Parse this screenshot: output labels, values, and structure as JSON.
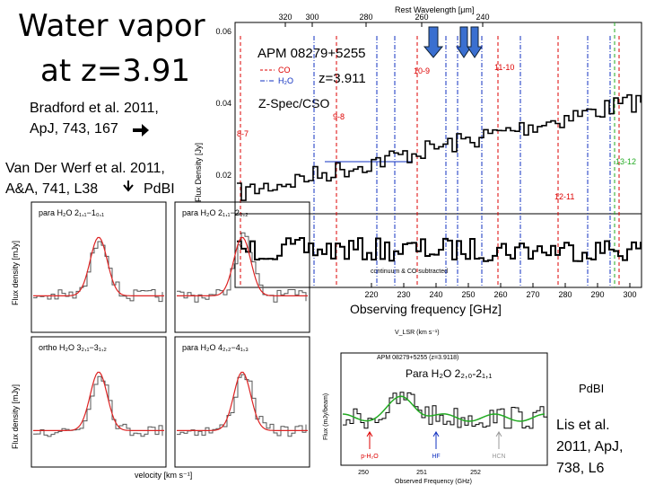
{
  "title": [
    "Water vapor",
    "at z=3.91"
  ],
  "references": {
    "bradford": [
      "Bradford et al. 2011,",
      "ApJ, 743, 167"
    ],
    "vanderwerf": [
      "Van Der Werf et al. 2011,",
      "A&A, 741, L38",
      "PdBI"
    ],
    "lis": [
      "Lis et al.",
      "2011,  ApJ,",
      "738, L6"
    ],
    "lis_instrument": "PdBI"
  },
  "zspec": {
    "top_axis_label": "Rest Wavelength [μm]",
    "top_ticks": [
      "320",
      "300",
      "280",
      "260",
      "240"
    ],
    "source": "APM 08279+5255",
    "legend": [
      "CO",
      "H₂O"
    ],
    "redshift": "z=3.911",
    "instrument": "Z-Spec/CSO",
    "y_label": "Flux Density [Jy]",
    "y_ticks": [
      "0.06",
      "0.04",
      "0.02"
    ],
    "line_labels": [
      "8-7",
      "9-8",
      "10-9",
      "11-10",
      "12-11",
      "13-12"
    ],
    "lower_note": "continuum & CO subtracted",
    "bottom_ticks": [
      "220",
      "230",
      "240",
      "250",
      "260",
      "270",
      "280",
      "290",
      "300"
    ],
    "x_label": "Observing frequency [GHz]"
  },
  "pdbi_panels": [
    {
      "label": "para H₂O 2₁,₁−1₀,₁"
    },
    {
      "label": "para H₂O 2₁,₁−2₀,₂"
    },
    {
      "label": "ortho H₂O 3₂,₁−3₁,₂"
    },
    {
      "label": "para H₂O 4₂,₂−4₁,₃"
    }
  ],
  "pdbi_axes": {
    "y_label": "Flux density [mJy]",
    "x_label": "velocity [km s⁻¹]"
  },
  "lis": {
    "top_label": "V_LSR (km s⁻¹)",
    "title": "APM 08279+5255 (z=3.9118)",
    "label": "Para H₂O 2₂,₀-2₁,₁",
    "markers": [
      "p-H₂O",
      "HF",
      "HCN"
    ],
    "x_ticks": [
      "250",
      "251",
      "252"
    ],
    "x_label": "Observed Frequency (GHz)",
    "y_label": "Flux (mJy/beam)"
  }
}
